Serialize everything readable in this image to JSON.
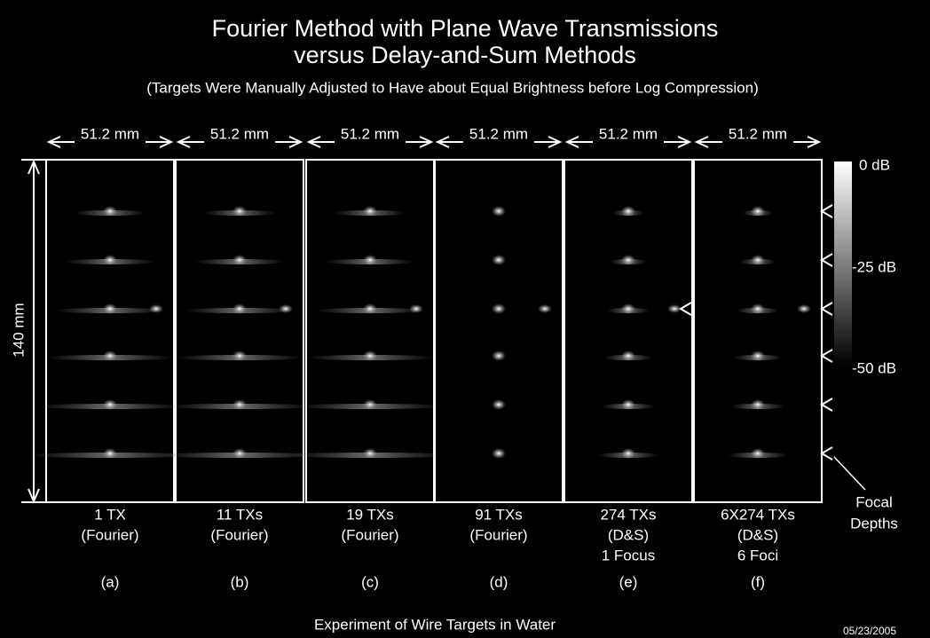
{
  "title": [
    "Fourier Method with Plane Wave Transmissions",
    "versus Delay-and-Sum Methods"
  ],
  "subtitle": "(Targets Were Manually Adjusted to Have about Equal Brightness before Log Compression)",
  "height_label": "140 mm",
  "panels": [
    {
      "width_label": "51.2 mm",
      "caption": [
        "1 TX",
        "(Fourier)"
      ],
      "letter": "(a)"
    },
    {
      "width_label": "51.2 mm",
      "caption": [
        "11 TXs",
        "(Fourier)"
      ],
      "letter": "(b)"
    },
    {
      "width_label": "51.2 mm",
      "caption": [
        "19 TXs",
        "(Fourier)"
      ],
      "letter": "(c)"
    },
    {
      "width_label": "51.2 mm",
      "caption": [
        "91 TXs",
        "(Fourier)"
      ],
      "letter": "(d)"
    },
    {
      "width_label": "51.2 mm",
      "caption": [
        "274 TXs",
        "(D&S)",
        "1 Focus"
      ],
      "letter": "(e)"
    },
    {
      "width_label": "51.2 mm",
      "caption": [
        "6X274 TXs",
        "(D&S)",
        "6 Foci"
      ],
      "letter": "(f)"
    }
  ],
  "colorbar_labels": [
    "0 dB",
    "-25 dB",
    "-50 dB"
  ],
  "annotation": [
    "Focal",
    "Depths"
  ],
  "footer": "Experiment of Wire Targets in Water",
  "date": "05/23/2005"
}
